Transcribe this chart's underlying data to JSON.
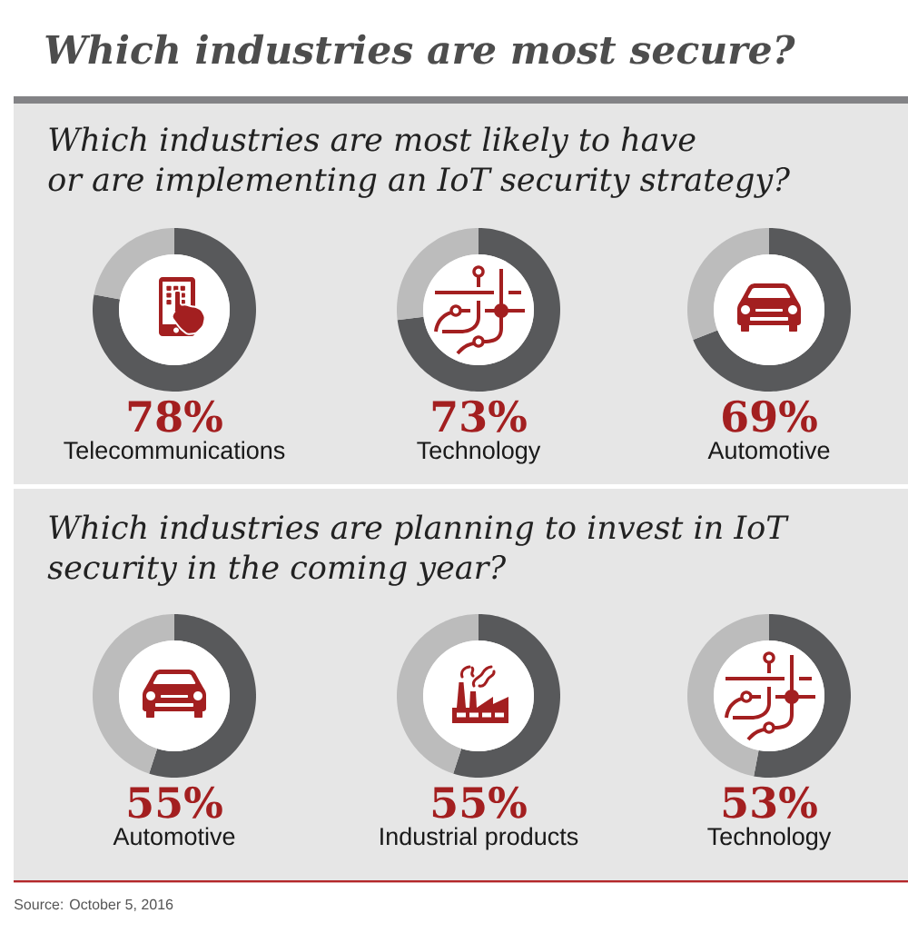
{
  "chart_data": [
    {
      "type": "donut",
      "title": "Which industries are most secure?",
      "subtitle": "Which industries are most likely to have or are implementing an IoT security strategy?",
      "categories": [
        "Telecommunications",
        null
      ],
      "values": [
        78,
        22
      ],
      "colors": [
        "#58595b",
        "#bcbcbc"
      ],
      "value_labels": [
        "78%",
        null
      ]
    },
    {
      "type": "donut",
      "categories": [
        "Technology",
        null
      ],
      "values": [
        73,
        27
      ],
      "colors": [
        "#58595b",
        "#bcbcbc"
      ],
      "value_labels": [
        "73%",
        null
      ]
    },
    {
      "type": "donut",
      "categories": [
        "Automotive",
        null
      ],
      "values": [
        69,
        31
      ],
      "colors": [
        "#58595b",
        "#bcbcbc"
      ],
      "value_labels": [
        "69%",
        null
      ]
    },
    {
      "type": "donut",
      "subtitle": "Which industries are planning to invest in IoT security in the coming year?",
      "categories": [
        "Automotive",
        null
      ],
      "values": [
        55,
        45
      ],
      "colors": [
        "#58595b",
        "#bcbcbc"
      ],
      "value_labels": [
        "55%",
        null
      ]
    },
    {
      "type": "donut",
      "categories": [
        "Industrial products",
        null
      ],
      "values": [
        55,
        45
      ],
      "colors": [
        "#58595b",
        "#bcbcbc"
      ],
      "value_labels": [
        "55%",
        null
      ]
    },
    {
      "type": "donut",
      "categories": [
        "Technology",
        null
      ],
      "values": [
        53,
        47
      ],
      "colors": [
        "#58595b",
        "#bcbcbc"
      ],
      "value_labels": [
        "53%",
        null
      ],
      "annotations": [
        "Source: October 5, 2016"
      ]
    }
  ]
}
